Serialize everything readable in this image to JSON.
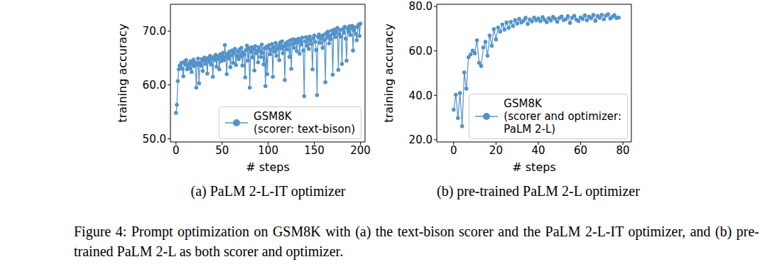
{
  "chart_data": [
    {
      "type": "line",
      "caption": "(a) PaLM 2-L-IT optimizer",
      "x_label": "# steps",
      "y_label": "training accuracy",
      "xlim": [
        -6,
        205
      ],
      "xticks": [
        0,
        50,
        100,
        150,
        200
      ],
      "ylim": [
        49.4,
        75
      ],
      "yticks": [
        {
          "value": 50,
          "label": "50.0"
        },
        {
          "value": 60,
          "label": "60.0"
        },
        {
          "value": 70,
          "label": "70.0"
        }
      ],
      "legend": "lower right",
      "grid": false,
      "series": [
        {
          "name": "GSM8K\n(scorer: text-bison)",
          "color": "#5393c9",
          "marker": "o",
          "x": [
            0,
            1,
            2,
            3,
            4,
            5,
            6,
            7,
            8,
            9,
            10,
            11,
            12,
            13,
            14,
            15,
            16,
            17,
            18,
            19,
            20,
            21,
            22,
            23,
            24,
            25,
            26,
            27,
            28,
            29,
            30,
            31,
            32,
            33,
            34,
            35,
            36,
            37,
            38,
            39,
            40,
            41,
            42,
            43,
            44,
            45,
            46,
            47,
            48,
            49,
            50,
            51,
            52,
            53,
            54,
            55,
            56,
            57,
            58,
            59,
            60,
            61,
            62,
            63,
            64,
            65,
            66,
            67,
            68,
            69,
            70,
            71,
            72,
            73,
            74,
            75,
            76,
            77,
            78,
            79,
            80,
            81,
            82,
            83,
            84,
            85,
            86,
            87,
            88,
            89,
            90,
            91,
            92,
            93,
            94,
            95,
            96,
            97,
            98,
            99,
            100,
            101,
            102,
            103,
            104,
            105,
            106,
            107,
            108,
            109,
            110,
            111,
            112,
            113,
            114,
            115,
            116,
            117,
            118,
            119,
            120,
            121,
            122,
            123,
            124,
            125,
            126,
            127,
            128,
            129,
            130,
            131,
            132,
            133,
            134,
            135,
            136,
            137,
            138,
            139,
            140,
            141,
            142,
            143,
            144,
            145,
            146,
            147,
            148,
            149,
            150,
            151,
            152,
            153,
            154,
            155,
            156,
            157,
            158,
            159,
            160,
            161,
            162,
            163,
            164,
            165,
            166,
            167,
            168,
            169,
            170,
            171,
            172,
            173,
            174,
            175,
            176,
            177,
            178,
            179,
            180,
            181,
            182,
            183,
            184,
            185,
            186,
            187,
            188,
            189,
            190,
            191,
            192,
            193,
            194,
            195,
            196,
            197,
            198,
            199,
            200
          ],
          "values": [
            54.8,
            56.3,
            60.7,
            62.9,
            63.6,
            63.2,
            64.1,
            63.0,
            61.6,
            64.3,
            63.8,
            64.6,
            62.9,
            63.4,
            64.0,
            63.1,
            64.4,
            62.4,
            63.9,
            64.7,
            63.5,
            64.2,
            59.5,
            63.8,
            64.9,
            60.3,
            64.1,
            63.6,
            64.8,
            62.6,
            64.5,
            65.1,
            63.9,
            64.7,
            62.1,
            65.0,
            64.3,
            65.4,
            63.8,
            64.9,
            61.5,
            65.2,
            64.6,
            65.6,
            63.4,
            64.8,
            65.3,
            62.9,
            65.7,
            64.4,
            65.1,
            66.0,
            64.6,
            67.4,
            65.2,
            62.0,
            65.8,
            64.9,
            66.2,
            63.3,
            65.5,
            66.4,
            64.1,
            65.9,
            66.7,
            63.7,
            65.4,
            66.2,
            64.8,
            66.6,
            65.3,
            66.9,
            63.6,
            66.1,
            65.6,
            61.4,
            66.5,
            67.3,
            64.5,
            66.8,
            59.5,
            66.2,
            67.0,
            65.1,
            66.6,
            62.7,
            67.2,
            65.9,
            66.4,
            64.2,
            67.0,
            66.3,
            65.2,
            67.5,
            66.0,
            63.8,
            66.8,
            59.8,
            67.1,
            62.0,
            66.9,
            67.4,
            65.7,
            66.5,
            67.6,
            61.5,
            67.0,
            66.2,
            67.8,
            65.4,
            66.7,
            67.3,
            64.6,
            67.9,
            66.8,
            68.1,
            65.9,
            67.2,
            60.9,
            67.7,
            66.6,
            68.0,
            67.4,
            65.2,
            68.3,
            63.0,
            67.6,
            68.5,
            66.9,
            67.8,
            68.4,
            66.3,
            67.9,
            68.6,
            65.8,
            68.2,
            67.5,
            68.8,
            66.4,
            57.9,
            68.1,
            68.9,
            67.3,
            68.5,
            66.7,
            69.0,
            68.3,
            67.6,
            62.9,
            68.7,
            69.2,
            68.0,
            66.5,
            58.1,
            68.9,
            69.4,
            67.8,
            68.6,
            69.1,
            66.9,
            69.3,
            68.4,
            60.5,
            69.6,
            68.8,
            69.9,
            67.7,
            69.2,
            68.5,
            70.1,
            61.9,
            69.5,
            70.3,
            68.9,
            69.8,
            70.6,
            62.8,
            69.4,
            70.2,
            69.0,
            63.9,
            70.4,
            69.7,
            70.8,
            68.6,
            64.5,
            70.5,
            69.9,
            70.9,
            69.3,
            70.6,
            71.0,
            66.4,
            70.2,
            70.7,
            69.5,
            68.3,
            70.8,
            71.2,
            69.1,
            71.4
          ]
        }
      ]
    },
    {
      "type": "line",
      "caption": "(b) pre-trained PaLM 2-L optimizer",
      "x_label": "# steps",
      "y_label": "training accuracy",
      "xlim": [
        -8,
        84
      ],
      "xticks": [
        0,
        20,
        40,
        60,
        80
      ],
      "ylim": [
        19,
        81
      ],
      "yticks": [
        {
          "value": 20,
          "label": "20.0"
        },
        {
          "value": 40,
          "label": "40.0"
        },
        {
          "value": 60,
          "label": "60.0"
        },
        {
          "value": 80,
          "label": "80.0"
        }
      ],
      "legend": "lower right",
      "grid": false,
      "series": [
        {
          "name": "GSM8K\n(scorer and optimizer:\nPaLM 2-L)",
          "color": "#5393c9",
          "marker": "o",
          "x": [
            0,
            1,
            2,
            3,
            4,
            5,
            6,
            7,
            8,
            9,
            10,
            11,
            12,
            13,
            14,
            15,
            16,
            17,
            18,
            19,
            20,
            21,
            22,
            23,
            24,
            25,
            26,
            27,
            28,
            29,
            30,
            31,
            32,
            33,
            34,
            35,
            36,
            37,
            38,
            39,
            40,
            41,
            42,
            43,
            44,
            45,
            46,
            47,
            48,
            49,
            50,
            51,
            52,
            53,
            54,
            55,
            56,
            57,
            58,
            59,
            60,
            61,
            62,
            63,
            64,
            65,
            66,
            67,
            68,
            69,
            70,
            71,
            72,
            73,
            74,
            75,
            76,
            77,
            78
          ],
          "values": [
            33.5,
            40.2,
            29.8,
            41.0,
            26.1,
            50.3,
            43.0,
            57.2,
            58.4,
            60.1,
            58.9,
            64.8,
            54.6,
            53.2,
            61.5,
            64.1,
            57.8,
            66.9,
            62.3,
            69.8,
            65.2,
            70.5,
            68.7,
            71.9,
            69.6,
            72.8,
            70.4,
            73.1,
            71.2,
            73.9,
            72.3,
            74.4,
            72.8,
            73.6,
            74.9,
            72.1,
            74.2,
            73.3,
            75.0,
            73.8,
            74.6,
            73.4,
            75.2,
            74.0,
            72.9,
            74.7,
            73.7,
            75.3,
            74.5,
            73.1,
            74.8,
            75.5,
            73.9,
            74.3,
            75.6,
            72.6,
            74.9,
            75.8,
            74.1,
            73.5,
            75.1,
            74.4,
            76.0,
            73.8,
            75.4,
            74.7,
            76.2,
            73.6,
            75.7,
            74.9,
            76.3,
            74.2,
            75.9,
            76.5,
            74.6,
            75.3,
            76.1,
            74.8,
            75.0
          ]
        }
      ]
    }
  ],
  "caption": "Figure 4: Prompt optimization on GSM8K with (a) the text-bison scorer and the PaLM 2-L-IT optimizer, and (b) pre-trained PaLM 2-L as both scorer and optimizer."
}
